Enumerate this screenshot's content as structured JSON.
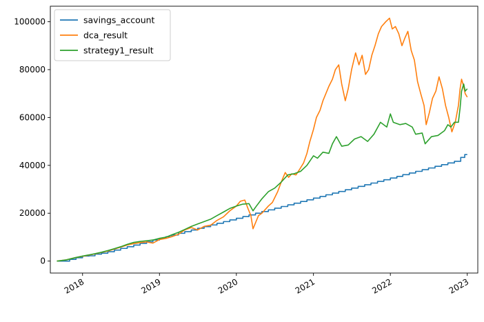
{
  "chart_data": {
    "type": "line",
    "grid": false,
    "legend_position": "top-left",
    "x_axis": {
      "type": "date",
      "min": "2017-08-01",
      "max": "2023-02-20",
      "ticks": [
        {
          "label": "2018",
          "date": "2018-01-01"
        },
        {
          "label": "2019",
          "date": "2019-01-01"
        },
        {
          "label": "2020",
          "date": "2020-01-01"
        },
        {
          "label": "2021",
          "date": "2021-01-01"
        },
        {
          "label": "2022",
          "date": "2022-01-01"
        },
        {
          "label": "2023",
          "date": "2023-01-01"
        }
      ]
    },
    "y_axis": {
      "min": -5000,
      "max": 106500,
      "ticks": [
        0,
        20000,
        40000,
        60000,
        80000,
        100000
      ]
    },
    "series": [
      {
        "name": "savings_account",
        "color": "#1f77b4",
        "step": true,
        "points": [
          [
            "2017-09-01",
            0
          ],
          [
            "2017-11-01",
            700
          ],
          [
            "2017-12-01",
            1400
          ],
          [
            "2018-01-01",
            2100
          ],
          [
            "2018-02-01",
            2200
          ],
          [
            "2018-03-01",
            2900
          ],
          [
            "2018-04-01",
            3300
          ],
          [
            "2018-05-01",
            3900
          ],
          [
            "2018-06-01",
            4600
          ],
          [
            "2018-07-01",
            5300
          ],
          [
            "2018-08-01",
            6000
          ],
          [
            "2018-09-01",
            6700
          ],
          [
            "2018-10-01",
            7400
          ],
          [
            "2018-11-01",
            8100
          ],
          [
            "2018-12-01",
            8800
          ],
          [
            "2019-01-01",
            9500
          ],
          [
            "2019-02-01",
            10200
          ],
          [
            "2019-03-01",
            10900
          ],
          [
            "2019-04-01",
            11600
          ],
          [
            "2019-05-01",
            12300
          ],
          [
            "2019-06-01",
            13000
          ],
          [
            "2019-07-01",
            13700
          ],
          [
            "2019-08-01",
            14400
          ],
          [
            "2019-09-01",
            15100
          ],
          [
            "2019-10-01",
            15800
          ],
          [
            "2019-11-01",
            16500
          ],
          [
            "2019-12-01",
            17200
          ],
          [
            "2020-01-01",
            17900
          ],
          [
            "2020-02-01",
            18600
          ],
          [
            "2020-03-01",
            19300
          ],
          [
            "2020-04-01",
            20000
          ],
          [
            "2020-05-01",
            20700
          ],
          [
            "2020-06-01",
            21400
          ],
          [
            "2020-07-01",
            22100
          ],
          [
            "2020-08-01",
            22800
          ],
          [
            "2020-09-01",
            23500
          ],
          [
            "2020-10-01",
            24200
          ],
          [
            "2020-11-01",
            24900
          ],
          [
            "2020-12-01",
            25600
          ],
          [
            "2021-01-01",
            26300
          ],
          [
            "2021-02-01",
            27000
          ],
          [
            "2021-03-01",
            27700
          ],
          [
            "2021-04-01",
            28400
          ],
          [
            "2021-05-01",
            29100
          ],
          [
            "2021-06-01",
            29800
          ],
          [
            "2021-07-01",
            30500
          ],
          [
            "2021-08-01",
            31200
          ],
          [
            "2021-09-01",
            31900
          ],
          [
            "2021-10-01",
            32600
          ],
          [
            "2021-11-01",
            33300
          ],
          [
            "2021-12-01",
            34000
          ],
          [
            "2022-01-01",
            34700
          ],
          [
            "2022-02-01",
            35400
          ],
          [
            "2022-03-01",
            36100
          ],
          [
            "2022-04-01",
            36800
          ],
          [
            "2022-05-01",
            37500
          ],
          [
            "2022-06-01",
            38200
          ],
          [
            "2022-07-01",
            38900
          ],
          [
            "2022-08-01",
            39600
          ],
          [
            "2022-09-01",
            40300
          ],
          [
            "2022-10-01",
            41000
          ],
          [
            "2022-11-01",
            41700
          ],
          [
            "2022-12-01",
            43300
          ],
          [
            "2022-12-20",
            44500
          ],
          [
            "2023-01-01",
            44500
          ]
        ]
      },
      {
        "name": "dca_result",
        "color": "#ff7f0e",
        "step": false,
        "points": [
          [
            "2017-09-01",
            0
          ],
          [
            "2017-10-15",
            500
          ],
          [
            "2017-12-01",
            1500
          ],
          [
            "2018-01-01",
            2000
          ],
          [
            "2018-02-01",
            2500
          ],
          [
            "2018-03-01",
            3000
          ],
          [
            "2018-04-01",
            3600
          ],
          [
            "2018-05-01",
            4200
          ],
          [
            "2018-06-01",
            5000
          ],
          [
            "2018-07-01",
            5800
          ],
          [
            "2018-08-01",
            6700
          ],
          [
            "2018-09-01",
            7300
          ],
          [
            "2018-10-01",
            7700
          ],
          [
            "2018-11-01",
            8000
          ],
          [
            "2018-12-01",
            7500
          ],
          [
            "2019-01-01",
            9000
          ],
          [
            "2019-02-01",
            9500
          ],
          [
            "2019-03-01",
            10200
          ],
          [
            "2019-04-01",
            11200
          ],
          [
            "2019-05-01",
            13000
          ],
          [
            "2019-06-01",
            14000
          ],
          [
            "2019-07-01",
            13000
          ],
          [
            "2019-08-01",
            14500
          ],
          [
            "2019-09-01",
            15000
          ],
          [
            "2019-10-01",
            17000
          ],
          [
            "2019-11-01",
            18500
          ],
          [
            "2019-12-01",
            21000
          ],
          [
            "2020-01-01",
            23000
          ],
          [
            "2020-01-20",
            25000
          ],
          [
            "2020-02-10",
            25500
          ],
          [
            "2020-02-25",
            22000
          ],
          [
            "2020-03-10",
            19000
          ],
          [
            "2020-03-20",
            13500
          ],
          [
            "2020-04-01",
            16000
          ],
          [
            "2020-04-15",
            19000
          ],
          [
            "2020-05-01",
            20000
          ],
          [
            "2020-06-01",
            23000
          ],
          [
            "2020-06-20",
            24500
          ],
          [
            "2020-07-15",
            29000
          ],
          [
            "2020-08-01",
            33000
          ],
          [
            "2020-08-20",
            37000
          ],
          [
            "2020-09-05",
            35000
          ],
          [
            "2020-09-20",
            36500
          ],
          [
            "2020-10-10",
            36000
          ],
          [
            "2020-10-25",
            38000
          ],
          [
            "2020-11-15",
            41000
          ],
          [
            "2020-12-01",
            45000
          ],
          [
            "2020-12-15",
            50000
          ],
          [
            "2021-01-01",
            55000
          ],
          [
            "2021-01-15",
            60000
          ],
          [
            "2021-02-01",
            63000
          ],
          [
            "2021-02-15",
            67000
          ],
          [
            "2021-03-01",
            70000
          ],
          [
            "2021-03-15",
            73000
          ],
          [
            "2021-04-01",
            76000
          ],
          [
            "2021-04-15",
            80000
          ],
          [
            "2021-05-01",
            82000
          ],
          [
            "2021-05-15",
            74000
          ],
          [
            "2021-06-01",
            67000
          ],
          [
            "2021-06-15",
            72000
          ],
          [
            "2021-07-01",
            80000
          ],
          [
            "2021-07-20",
            87000
          ],
          [
            "2021-08-05",
            82000
          ],
          [
            "2021-08-20",
            86000
          ],
          [
            "2021-09-05",
            78000
          ],
          [
            "2021-09-20",
            80000
          ],
          [
            "2021-10-05",
            86000
          ],
          [
            "2021-10-20",
            90000
          ],
          [
            "2021-11-05",
            95000
          ],
          [
            "2021-11-20",
            98000
          ],
          [
            "2021-12-10",
            100000
          ],
          [
            "2021-12-28",
            101500
          ],
          [
            "2022-01-10",
            97000
          ],
          [
            "2022-01-25",
            98000
          ],
          [
            "2022-02-10",
            95000
          ],
          [
            "2022-02-25",
            90000
          ],
          [
            "2022-03-10",
            93000
          ],
          [
            "2022-03-25",
            96000
          ],
          [
            "2022-04-10",
            88000
          ],
          [
            "2022-04-25",
            84000
          ],
          [
            "2022-05-10",
            75000
          ],
          [
            "2022-05-25",
            70000
          ],
          [
            "2022-06-10",
            65000
          ],
          [
            "2022-06-20",
            57000
          ],
          [
            "2022-07-05",
            62000
          ],
          [
            "2022-07-20",
            68000
          ],
          [
            "2022-08-05",
            71000
          ],
          [
            "2022-08-20",
            77000
          ],
          [
            "2022-09-05",
            72000
          ],
          [
            "2022-09-20",
            65000
          ],
          [
            "2022-10-05",
            60000
          ],
          [
            "2022-10-20",
            54000
          ],
          [
            "2022-11-05",
            58000
          ],
          [
            "2022-11-20",
            65000
          ],
          [
            "2022-11-28",
            72000
          ],
          [
            "2022-12-05",
            76000
          ],
          [
            "2022-12-15",
            73000
          ],
          [
            "2022-12-22",
            70000
          ],
          [
            "2023-01-01",
            68500
          ]
        ]
      },
      {
        "name": "strategy1_result",
        "color": "#2ca02c",
        "step": false,
        "points": [
          [
            "2017-09-01",
            0
          ],
          [
            "2017-10-15",
            500
          ],
          [
            "2017-12-01",
            1500
          ],
          [
            "2018-01-01",
            2100
          ],
          [
            "2018-02-01",
            2600
          ],
          [
            "2018-03-01",
            3100
          ],
          [
            "2018-04-01",
            3700
          ],
          [
            "2018-05-01",
            4400
          ],
          [
            "2018-06-01",
            5200
          ],
          [
            "2018-07-01",
            6000
          ],
          [
            "2018-08-01",
            7000
          ],
          [
            "2018-09-01",
            7800
          ],
          [
            "2018-10-01",
            8200
          ],
          [
            "2018-11-01",
            8500
          ],
          [
            "2018-12-01",
            8800
          ],
          [
            "2019-01-01",
            9500
          ],
          [
            "2019-02-01",
            10000
          ],
          [
            "2019-03-01",
            11000
          ],
          [
            "2019-04-01",
            12000
          ],
          [
            "2019-05-01",
            13200
          ],
          [
            "2019-06-01",
            14500
          ],
          [
            "2019-07-01",
            15500
          ],
          [
            "2019-08-01",
            16500
          ],
          [
            "2019-09-01",
            17500
          ],
          [
            "2019-10-01",
            19000
          ],
          [
            "2019-11-01",
            20500
          ],
          [
            "2019-12-01",
            22000
          ],
          [
            "2020-01-01",
            23000
          ],
          [
            "2020-02-01",
            23800
          ],
          [
            "2020-03-01",
            24000
          ],
          [
            "2020-03-20",
            21000
          ],
          [
            "2020-04-01",
            22500
          ],
          [
            "2020-05-01",
            26000
          ],
          [
            "2020-06-01",
            29000
          ],
          [
            "2020-07-01",
            30500
          ],
          [
            "2020-08-01",
            33000
          ],
          [
            "2020-09-01",
            36000
          ],
          [
            "2020-10-01",
            36500
          ],
          [
            "2020-11-01",
            37500
          ],
          [
            "2020-12-01",
            40000
          ],
          [
            "2021-01-01",
            44000
          ],
          [
            "2021-01-20",
            43000
          ],
          [
            "2021-02-15",
            45500
          ],
          [
            "2021-03-15",
            45000
          ],
          [
            "2021-04-01",
            49000
          ],
          [
            "2021-04-20",
            52000
          ],
          [
            "2021-05-15",
            48000
          ],
          [
            "2021-06-15",
            48500
          ],
          [
            "2021-07-15",
            51000
          ],
          [
            "2021-08-15",
            52000
          ],
          [
            "2021-09-15",
            50000
          ],
          [
            "2021-10-15",
            53000
          ],
          [
            "2021-11-15",
            58000
          ],
          [
            "2021-12-15",
            56000
          ],
          [
            "2022-01-01",
            61500
          ],
          [
            "2022-01-15",
            58000
          ],
          [
            "2022-02-15",
            57000
          ],
          [
            "2022-03-15",
            57500
          ],
          [
            "2022-04-15",
            56000
          ],
          [
            "2022-05-01",
            53000
          ],
          [
            "2022-06-01",
            53500
          ],
          [
            "2022-06-15",
            49000
          ],
          [
            "2022-07-15",
            52000
          ],
          [
            "2022-08-15",
            52500
          ],
          [
            "2022-09-15",
            54500
          ],
          [
            "2022-10-01",
            57000
          ],
          [
            "2022-10-15",
            56000
          ],
          [
            "2022-11-01",
            58000
          ],
          [
            "2022-11-20",
            58000
          ],
          [
            "2022-11-28",
            64000
          ],
          [
            "2022-12-05",
            71000
          ],
          [
            "2022-12-15",
            74000
          ],
          [
            "2022-12-22",
            71000
          ],
          [
            "2023-01-01",
            72000
          ]
        ]
      }
    ]
  }
}
